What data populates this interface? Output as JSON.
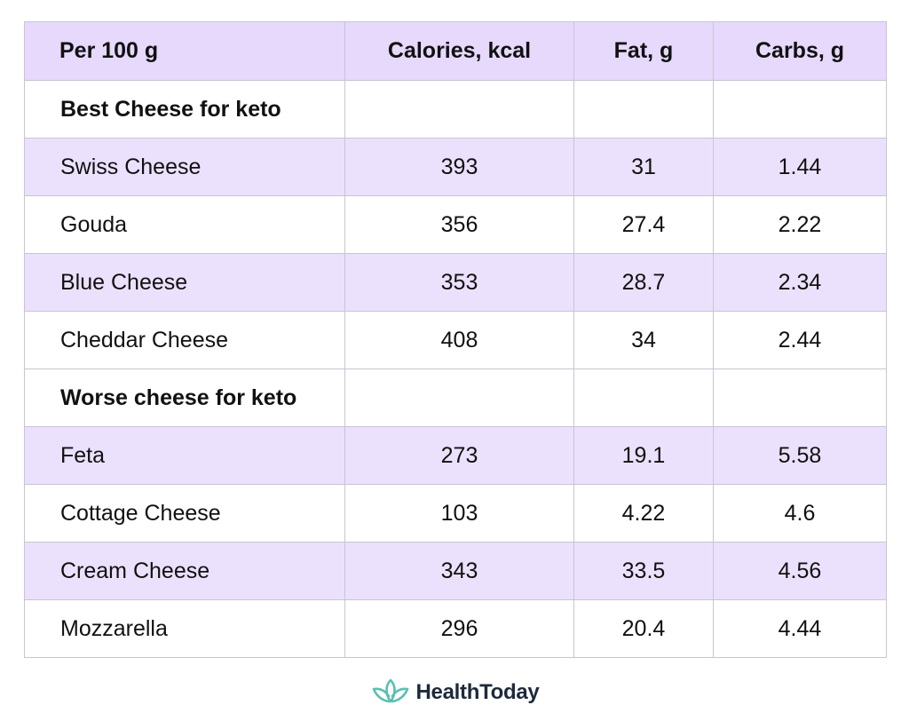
{
  "table": {
    "headers": [
      "Per 100 g",
      "Calories, kcal",
      "Fat, g",
      "Carbs, g"
    ],
    "sections": [
      {
        "title": "Best Cheese for keto",
        "rows": [
          {
            "name": "Swiss Cheese",
            "calories": "393",
            "fat": "31",
            "carbs": "1.44"
          },
          {
            "name": "Gouda",
            "calories": "356",
            "fat": "27.4",
            "carbs": "2.22"
          },
          {
            "name": "Blue Cheese",
            "calories": "353",
            "fat": "28.7",
            "carbs": "2.34"
          },
          {
            "name": "Cheddar Cheese",
            "calories": "408",
            "fat": "34",
            "carbs": "2.44"
          }
        ]
      },
      {
        "title": "Worse cheese for keto",
        "rows": [
          {
            "name": "Feta",
            "calories": "273",
            "fat": "19.1",
            "carbs": "5.58"
          },
          {
            "name": "Cottage Cheese",
            "calories": "103",
            "fat": "4.22",
            "carbs": "4.6"
          },
          {
            "name": "Cream Cheese",
            "calories": "343",
            "fat": "33.5",
            "carbs": "4.56"
          },
          {
            "name": "Mozzarella",
            "calories": "296",
            "fat": "20.4",
            "carbs": "4.44"
          }
        ]
      }
    ]
  },
  "brand": {
    "name": "HealthToday",
    "icon": "lotus-logo-icon",
    "logo_color": "#5bbfb0"
  },
  "colors": {
    "header_bg": "#e6d9fc",
    "row_shade": "#ece1fd",
    "border": "#c9c4d2"
  }
}
